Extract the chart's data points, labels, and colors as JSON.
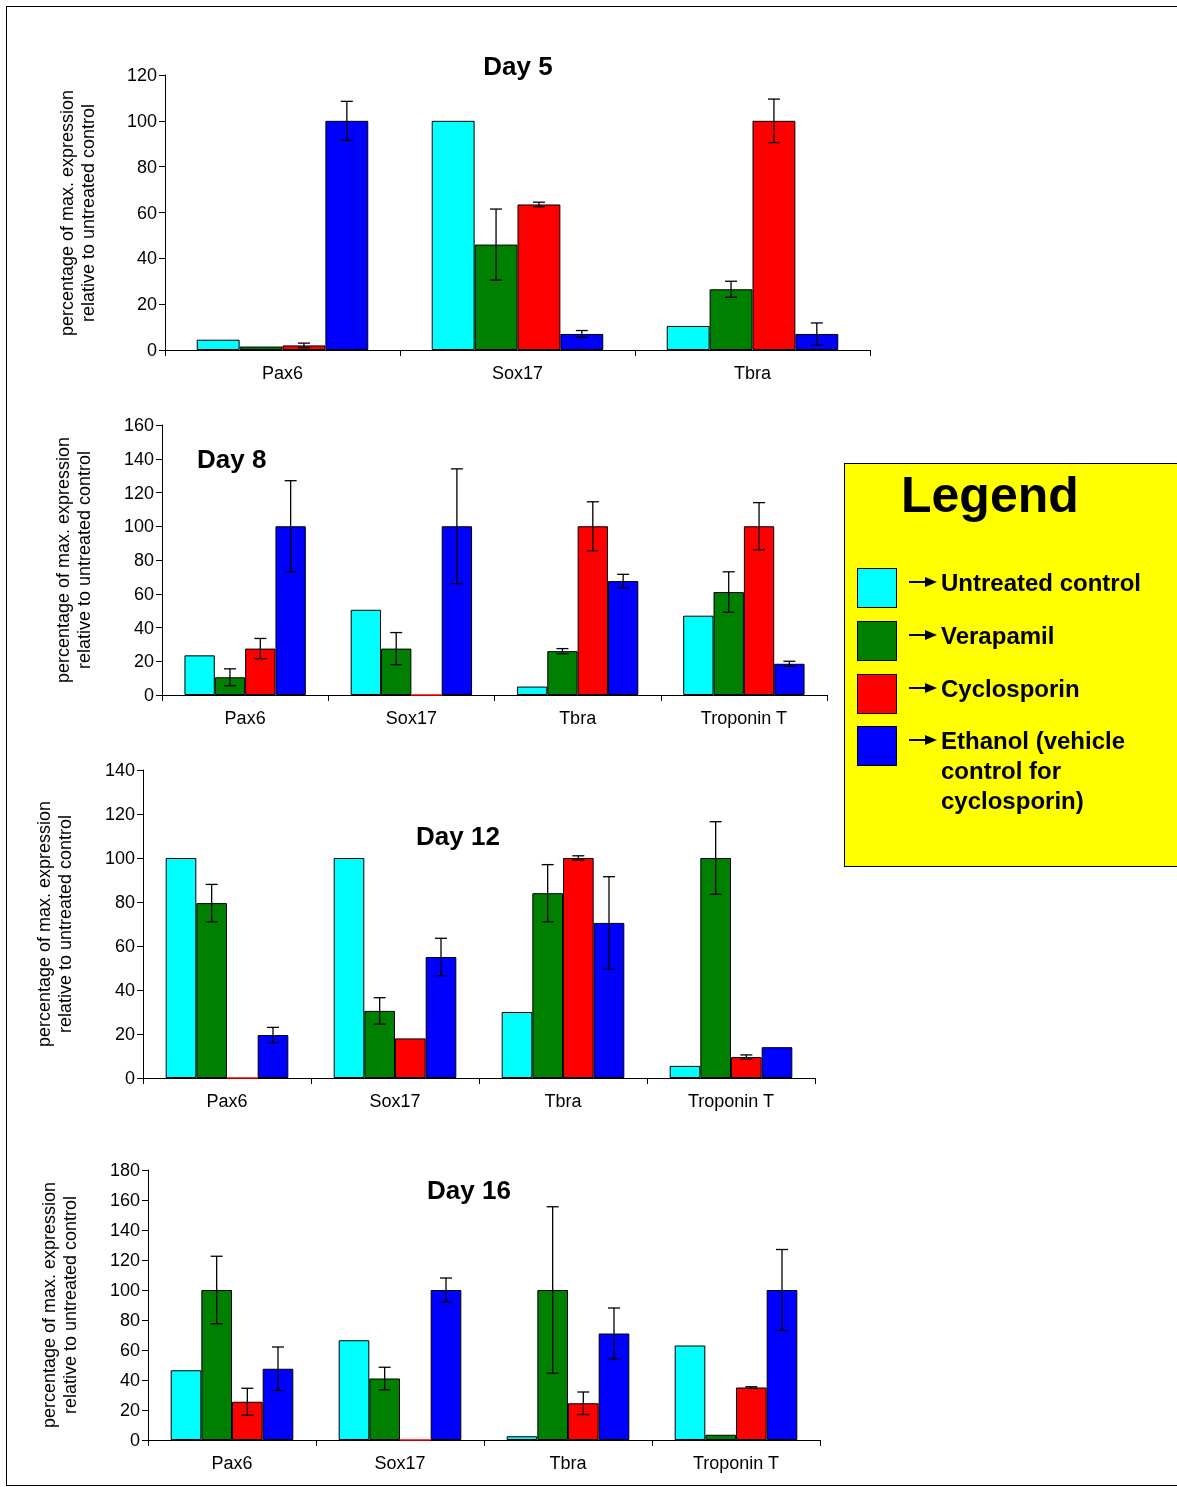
{
  "chart_data": [
    {
      "type": "bar",
      "title": "Day 5",
      "ylabel": "percentage of max. expression relative to untreated control",
      "categories": [
        "Pax6",
        "Sox17",
        "Tbra"
      ],
      "ylim": [
        0,
        120
      ],
      "yticks": [
        0,
        20,
        40,
        60,
        80,
        100,
        120
      ],
      "grid": false,
      "series": [
        {
          "color": "#00ffff",
          "values": [
            4.5,
            100,
            10.5
          ],
          "errors": [
            null,
            null,
            null
          ]
        },
        {
          "color": "#008000",
          "values": [
            1.5,
            46,
            26.5
          ],
          "errors": [
            null,
            15.5,
            3.5
          ]
        },
        {
          "color": "#ff0000",
          "values": [
            2,
            63.5,
            100
          ],
          "errors": [
            1,
            1,
            9.5
          ]
        },
        {
          "color": "#0000ff",
          "values": [
            100,
            7,
            7
          ],
          "errors": [
            8.5,
            1.5,
            4.8
          ]
        }
      ]
    },
    {
      "type": "bar",
      "title": "Day 8",
      "ylabel": "percentage of max. expression relative to untreated control",
      "categories": [
        "Pax6",
        "Sox17",
        "Tbra",
        "Troponin T"
      ],
      "ylim": [
        0,
        160
      ],
      "yticks": [
        0,
        20,
        40,
        60,
        80,
        100,
        120,
        140,
        160
      ],
      "grid": false,
      "legend": "right",
      "legend_title": "Legend",
      "series": [
        {
          "name": "Untreated control",
          "color": "#00ffff",
          "values": [
            23.5,
            50.5,
            5,
            47
          ],
          "errors": [
            null,
            null,
            null,
            null
          ]
        },
        {
          "name": "Verapamil",
          "color": "#008000",
          "values": [
            10.5,
            27.5,
            26,
            61
          ],
          "errors": [
            5,
            9.5,
            1.5,
            12
          ]
        },
        {
          "name": "Cyclosporin",
          "color": "#ff0000",
          "values": [
            27.5,
            0,
            100,
            100
          ],
          "errors": [
            6,
            null,
            14.5,
            14
          ]
        },
        {
          "name": "Ethanol (vehicle control for cyclosporin)",
          "color": "#0000ff",
          "values": [
            100,
            100,
            67.5,
            18.5
          ],
          "errors": [
            27,
            34,
            4,
            1.5
          ]
        }
      ]
    },
    {
      "type": "bar",
      "title": "Day 12",
      "ylabel": "percentage of max. expression relative to untreated control",
      "categories": [
        "Pax6",
        "Sox17",
        "Tbra",
        "Troponin T"
      ],
      "ylim": [
        0,
        140
      ],
      "yticks": [
        0,
        20,
        40,
        60,
        80,
        100,
        120,
        140
      ],
      "grid": false,
      "series": [
        {
          "color": "#00ffff",
          "values": [
            100,
            100,
            30,
            5.5
          ],
          "errors": [
            null,
            null,
            null,
            null
          ]
        },
        {
          "color": "#008000",
          "values": [
            79.5,
            30.5,
            84,
            100
          ],
          "errors": [
            8.5,
            6,
            13,
            16.5
          ]
        },
        {
          "color": "#ff0000",
          "values": [
            0,
            18,
            100,
            9.5
          ],
          "errors": [
            null,
            null,
            1,
            1
          ]
        },
        {
          "color": "#0000ff",
          "values": [
            19.5,
            55,
            70.5,
            14
          ],
          "errors": [
            3.5,
            8.5,
            21,
            null
          ]
        }
      ]
    },
    {
      "type": "bar",
      "title": "Day 16",
      "ylabel": "percentage of max. expression relative to untreated control",
      "categories": [
        "Pax6",
        "Sox17",
        "Tbra",
        "Troponin T"
      ],
      "ylim": [
        0,
        180
      ],
      "yticks": [
        0,
        20,
        40,
        60,
        80,
        100,
        120,
        140,
        160,
        180
      ],
      "grid": false,
      "series": [
        {
          "color": "#00ffff",
          "values": [
            46.5,
            66.5,
            2.5,
            63
          ],
          "errors": [
            null,
            null,
            null,
            null
          ]
        },
        {
          "color": "#008000",
          "values": [
            100,
            41,
            100,
            3.5
          ],
          "errors": [
            22.5,
            7.5,
            55.5,
            null
          ]
        },
        {
          "color": "#ff0000",
          "values": [
            25.5,
            0,
            24.5,
            35
          ],
          "errors": [
            9,
            null,
            7.5,
            0.5
          ]
        },
        {
          "color": "#0000ff",
          "values": [
            47.5,
            100,
            71,
            100
          ],
          "errors": [
            14.5,
            8,
            17,
            27
          ]
        }
      ]
    }
  ]
}
